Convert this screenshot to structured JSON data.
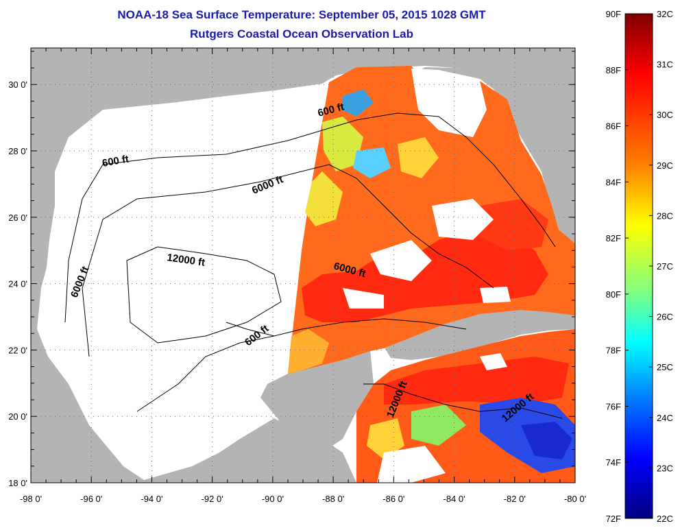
{
  "header": {
    "title": "NOAA-18 Sea Surface Temperature:  September 05, 2015 1028 GMT",
    "subtitle": "Rutgers Coastal Ocean Observation Lab"
  },
  "map": {
    "lon_ticks": [
      "-98 0'",
      "-96 0'",
      "-94 0'",
      "-92 0'",
      "-90 0'",
      "-88 0'",
      "-86 0'",
      "-84 0'",
      "-82 0'",
      "-80 0'"
    ],
    "lat_ticks": [
      "18 0'",
      "20 0'",
      "22 0'",
      "24 0'",
      "26 0'",
      "28 0'",
      "30 0'"
    ],
    "lon_range": [
      -98,
      -80
    ],
    "lat_range": [
      18,
      31.1
    ],
    "contour_labels": [
      "600 ft",
      "600 ft",
      "6000 ft",
      "12000 ft",
      "6000 ft",
      "6000 ft",
      "600 ft",
      "12000 ft",
      "12000 ft"
    ],
    "colors": {
      "land": "#b4b4b4",
      "no_data": "#ffffff",
      "border": "#000000"
    }
  },
  "colorbar": {
    "fahrenheit_labels": [
      "90F",
      "88F",
      "86F",
      "84F",
      "82F",
      "80F",
      "78F",
      "76F",
      "74F",
      "72F"
    ],
    "celsius_labels": [
      "32C",
      "31C",
      "30C",
      "29C",
      "28C",
      "27C",
      "26C",
      "25C",
      "24C",
      "23C",
      "22C"
    ],
    "fahrenheit_range": [
      72,
      90
    ],
    "celsius_range": [
      22,
      32
    ],
    "gradient": [
      "#7f0000",
      "#ff0000",
      "#ff8000",
      "#ffff00",
      "#80ff80",
      "#00ffff",
      "#0080ff",
      "#0000ff",
      "#00007f"
    ]
  }
}
